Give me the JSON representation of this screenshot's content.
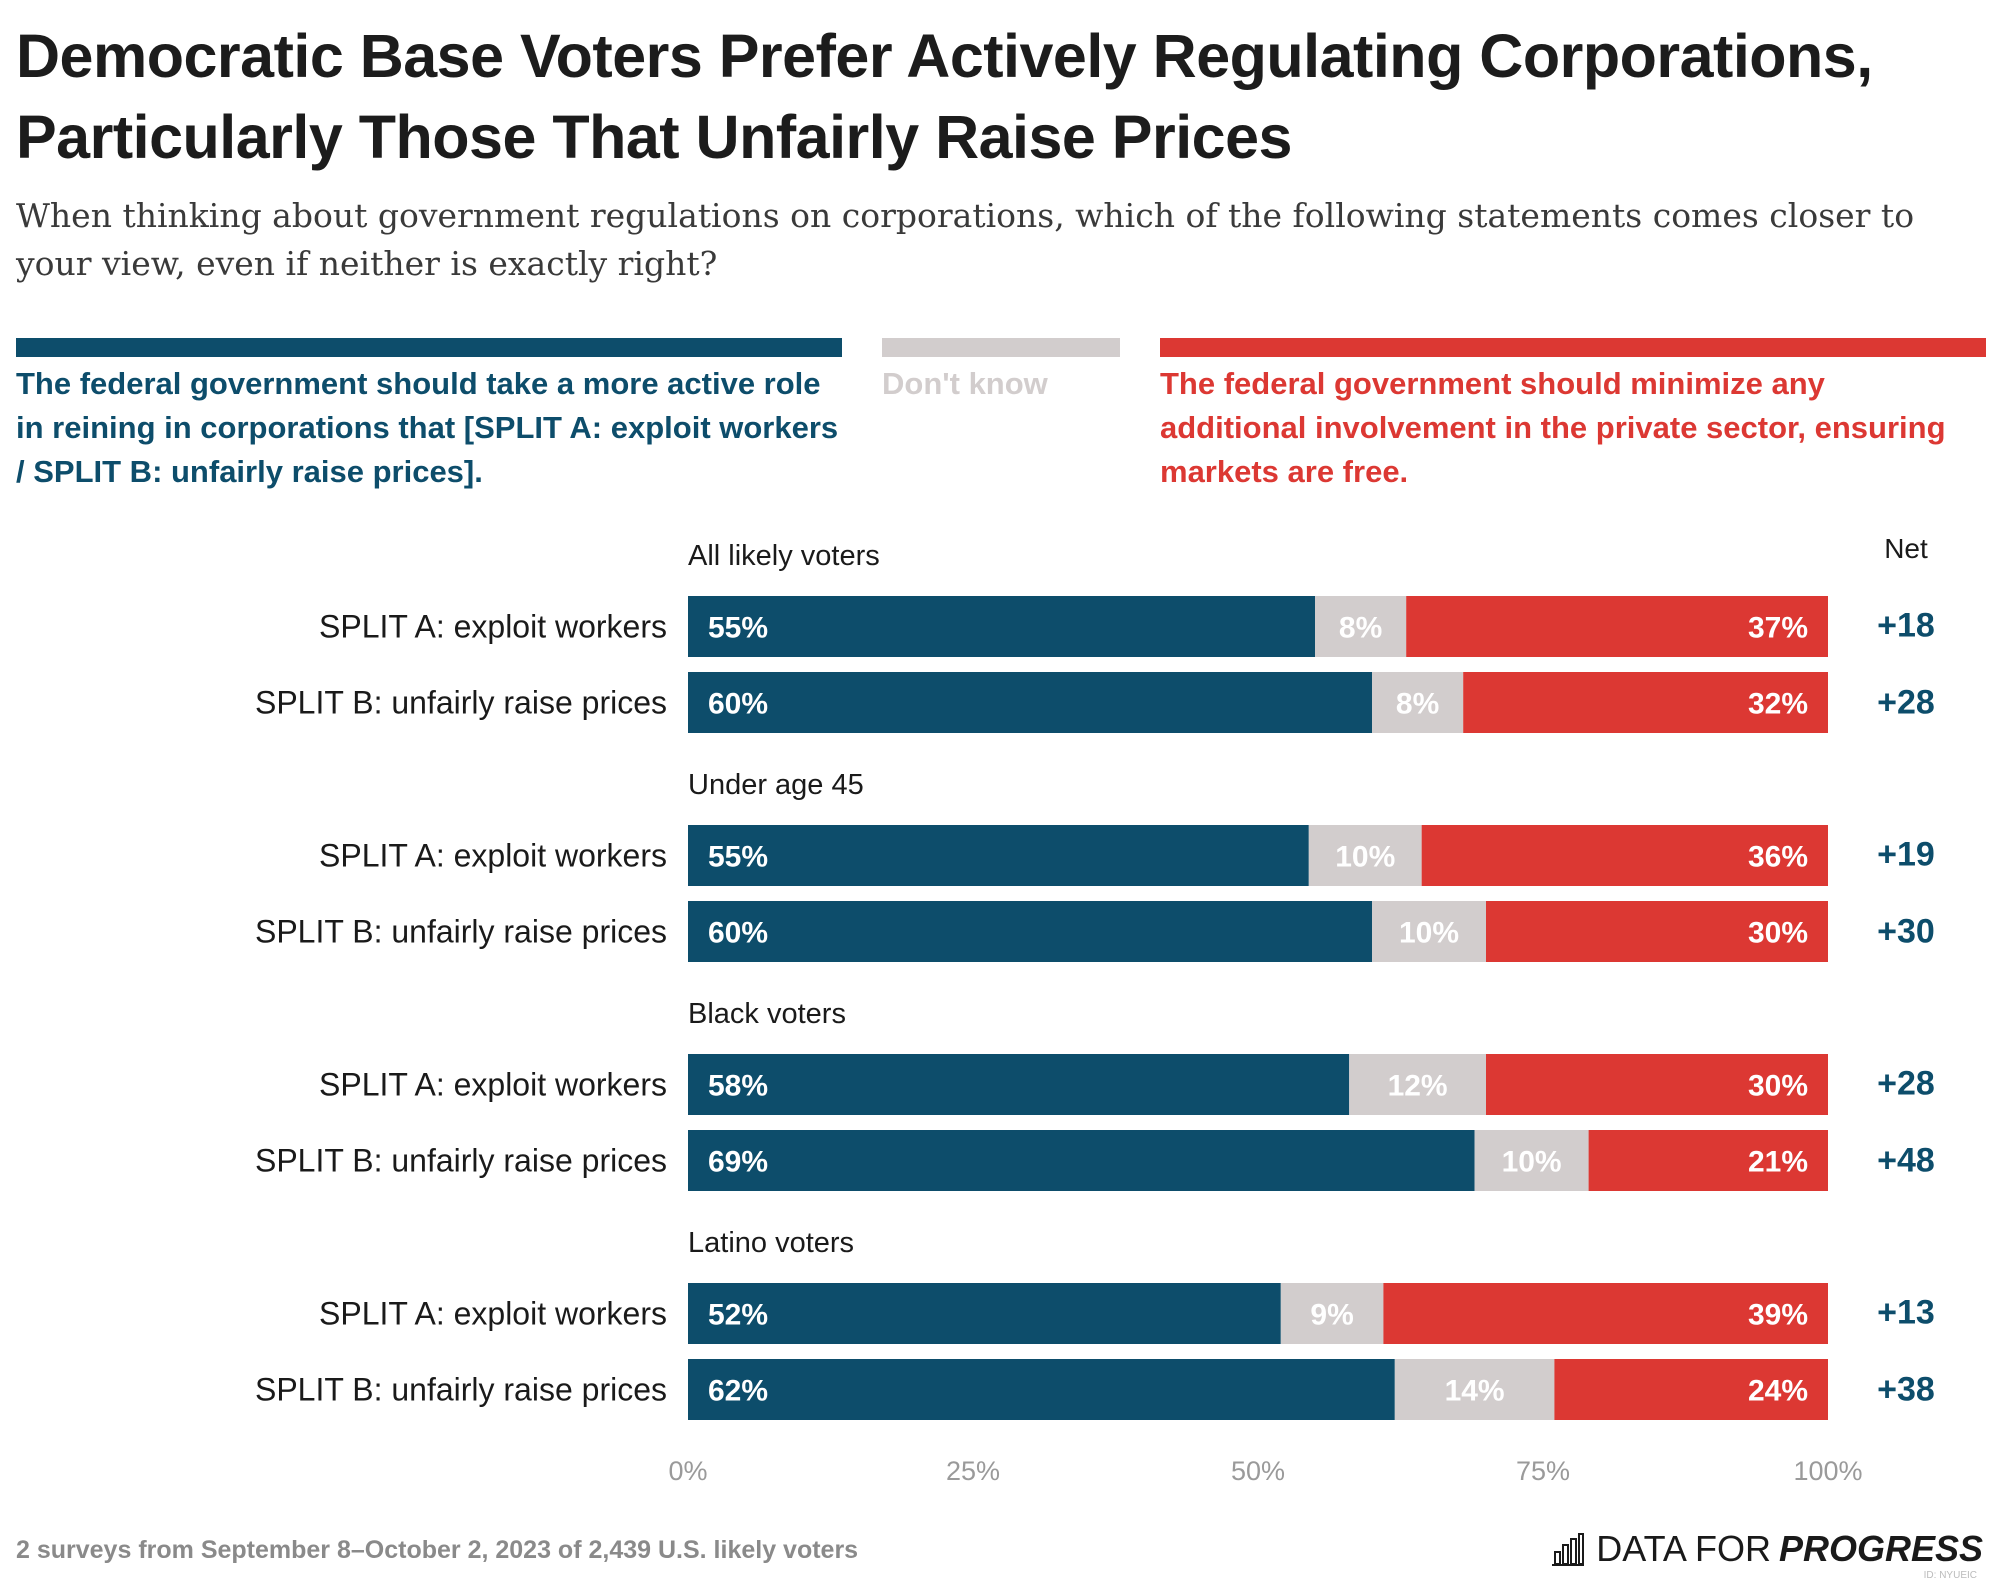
{
  "title": "Democratic Base Voters Prefer Actively Regulating Corporations, Particularly Those That Unfairly Raise Prices",
  "subtitle": "When thinking about government regulations on corporations, which of the following statements comes closer to your view, even if neither is exactly right?",
  "legend": {
    "active": "The federal government should take a more active role in reining in corporations that [SPLIT A: exploit workers / SPLIT B: unfairly raise prices].",
    "dont_know": "Don't know",
    "minimize": "The federal government should minimize any additional involvement in the private sector, ensuring markets are free."
  },
  "colors": {
    "active": "#0d4d6b",
    "dont_know": "#d2cdcd",
    "minimize": "#dc3833",
    "net": "#0d4d6b"
  },
  "net_header": "Net",
  "footer": "2 surveys from September 8–October 2, 2023 of 2,439 U.S. likely voters",
  "brand": {
    "prefix": "DATA FOR",
    "suffix": "PROGRESS",
    "id": "ID: NYUEIC"
  },
  "chart_data": {
    "type": "bar",
    "orientation": "horizontal-stacked",
    "x_ticks": [
      "0%",
      "25%",
      "50%",
      "75%",
      "100%"
    ],
    "xlim": [
      0,
      100
    ],
    "series_names": [
      "active",
      "dont_know",
      "minimize"
    ],
    "groups": [
      {
        "name": "All likely voters",
        "rows": [
          {
            "label": "SPLIT A: exploit workers",
            "active": 55,
            "dont_know": 8,
            "minimize": 37,
            "net": "+18"
          },
          {
            "label": "SPLIT B: unfairly raise prices",
            "active": 60,
            "dont_know": 8,
            "minimize": 32,
            "net": "+28"
          }
        ]
      },
      {
        "name": "Under age 45",
        "rows": [
          {
            "label": "SPLIT A: exploit workers",
            "active": 55,
            "dont_know": 10,
            "minimize": 36,
            "net": "+19"
          },
          {
            "label": "SPLIT B: unfairly raise prices",
            "active": 60,
            "dont_know": 10,
            "minimize": 30,
            "net": "+30"
          }
        ]
      },
      {
        "name": "Black voters",
        "rows": [
          {
            "label": "SPLIT A: exploit workers",
            "active": 58,
            "dont_know": 12,
            "minimize": 30,
            "net": "+28"
          },
          {
            "label": "SPLIT B: unfairly raise prices",
            "active": 69,
            "dont_know": 10,
            "minimize": 21,
            "net": "+48"
          }
        ]
      },
      {
        "name": "Latino voters",
        "rows": [
          {
            "label": "SPLIT A: exploit workers",
            "active": 52,
            "dont_know": 9,
            "minimize": 39,
            "net": "+13"
          },
          {
            "label": "SPLIT B: unfairly raise prices",
            "active": 62,
            "dont_know": 14,
            "minimize": 24,
            "net": "+38"
          }
        ]
      }
    ]
  }
}
